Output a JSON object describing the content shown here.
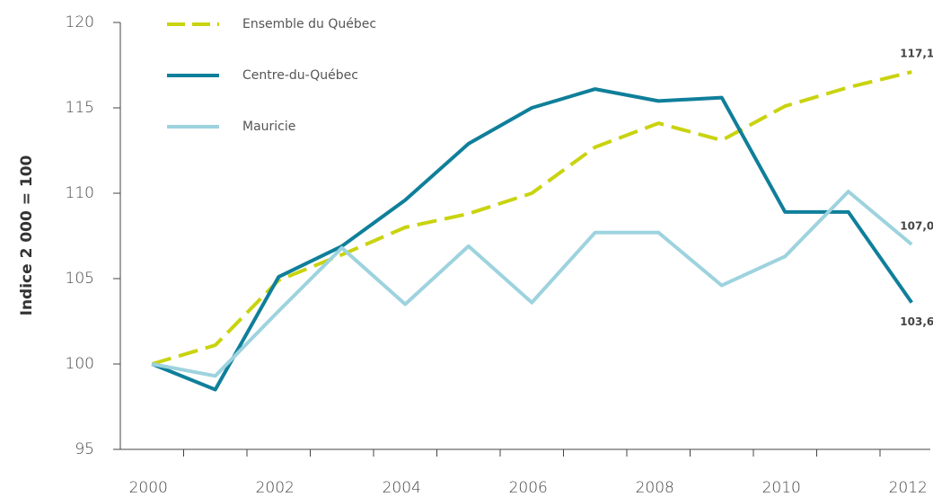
{
  "chart_data": {
    "type": "line",
    "ylabel": "Indice 2 000 = 100",
    "categories": [
      "2000",
      null,
      "2002",
      null,
      "2004",
      null,
      "2006",
      null,
      "2008",
      null,
      "2010",
      null,
      "2012"
    ],
    "ylim": [
      95,
      120
    ],
    "yticks": [
      95,
      100,
      105,
      110,
      115,
      120
    ],
    "series": [
      {
        "name": "Ensemble du Québec",
        "color": "#c9d30f",
        "dash": true,
        "values": [
          100,
          101.1,
          104.9,
          106.4,
          108.0,
          108.8,
          110.0,
          112.7,
          114.1,
          113.1,
          115.1,
          116.2,
          117.1
        ],
        "value_labels": [
          null,
          null,
          null,
          null,
          null,
          null,
          null,
          null,
          null,
          null,
          null,
          null,
          "117,1"
        ]
      },
      {
        "name": "Centre-du-Québec",
        "color": "#0f7f9a",
        "dash": false,
        "values": [
          100,
          98.5,
          105.1,
          106.9,
          109.6,
          112.9,
          115.0,
          116.1,
          115.4,
          115.6,
          108.9,
          108.9,
          103.6
        ],
        "value_labels": [
          null,
          null,
          null,
          null,
          null,
          null,
          null,
          null,
          null,
          null,
          null,
          null,
          "103,6"
        ]
      },
      {
        "name": "Mauricie",
        "color": "#9dd3de",
        "dash": false,
        "values": [
          100,
          99.3,
          103.1,
          106.8,
          103.5,
          106.9,
          103.6,
          107.7,
          107.7,
          104.6,
          106.3,
          110.1,
          107.0
        ],
        "value_labels": [
          null,
          null,
          null,
          null,
          null,
          null,
          null,
          null,
          null,
          null,
          null,
          null,
          "107,0"
        ]
      }
    ]
  }
}
